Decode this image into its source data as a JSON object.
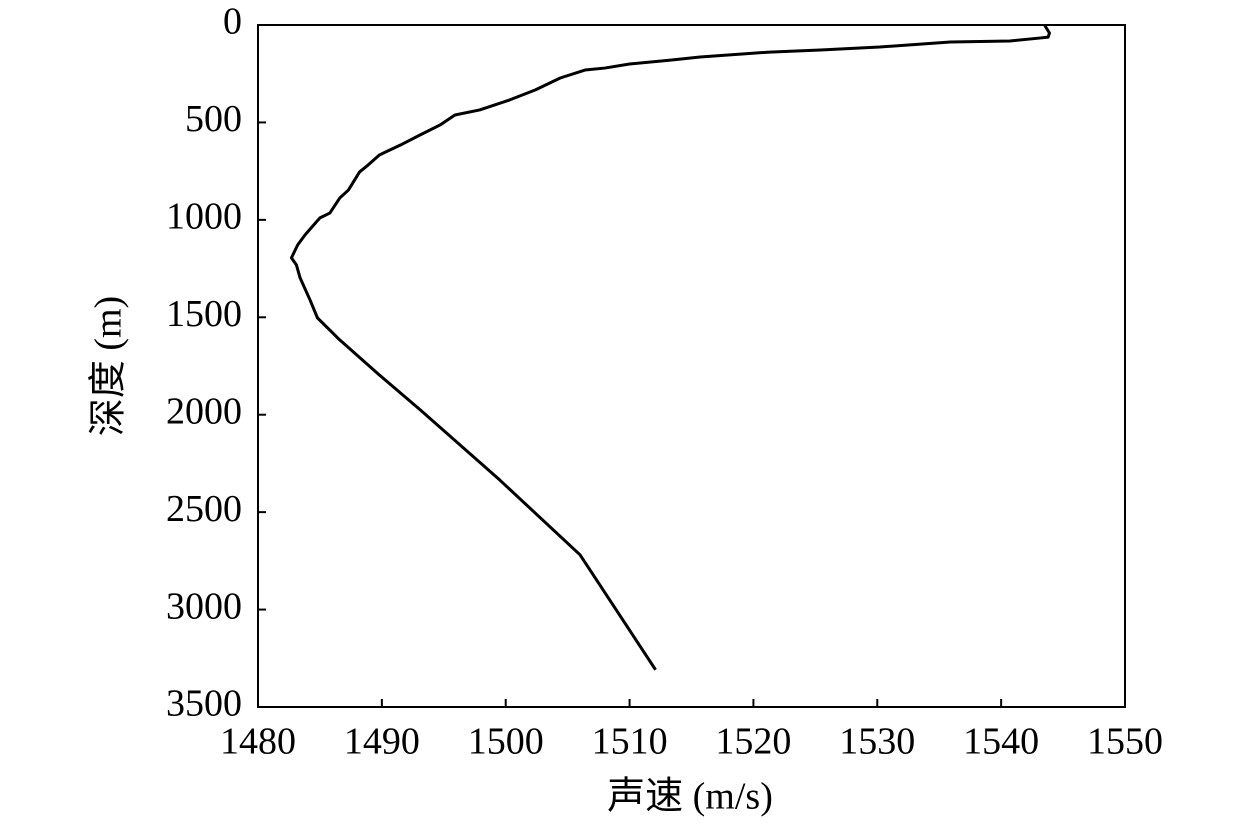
{
  "chart_data": {
    "type": "line",
    "x_label": "声速 (m/s)",
    "y_label": "深度 (m)",
    "series": [
      {
        "color": "#000000",
        "x": [
          1543.5,
          1543.9,
          1543.8,
          1543.1,
          1540.7,
          1535.9,
          1530.2,
          1525.4,
          1521.3,
          1515.7,
          1513.3,
          1510.0,
          1508.0,
          1506.4,
          1504.4,
          1502.4,
          1500.3,
          1497.9,
          1495.9,
          1494.7,
          1493.1,
          1491.5,
          1489.8,
          1488.9,
          1488.2,
          1487.3,
          1486.6,
          1485.8,
          1485.0,
          1483.8,
          1483.2,
          1482.7,
          1483.1,
          1483.4,
          1484.2,
          1484.8,
          1486.6,
          1489.8,
          1493.1,
          1499.5,
          1506.0,
          1512.1
        ],
        "values": [
          0,
          41,
          62,
          67,
          82,
          87,
          113,
          128,
          139,
          164,
          180,
          200,
          221,
          231,
          272,
          333,
          385,
          436,
          462,
          513,
          564,
          616,
          667,
          718,
          754,
          847,
          888,
          965,
          990,
          1077,
          1129,
          1195,
          1231,
          1298,
          1411,
          1503,
          1616,
          1796,
          1975,
          2334,
          2719,
          3309
        ]
      }
    ],
    "xlim": [
      1480,
      1550
    ],
    "xticks": [
      1480,
      1490,
      1500,
      1510,
      1520,
      1530,
      1540,
      1550
    ],
    "ylim": [
      0,
      3500
    ],
    "yticks": [
      0,
      500,
      1000,
      1500,
      2000,
      2500,
      3000,
      3500
    ],
    "y_inverted": true,
    "grid": false
  }
}
